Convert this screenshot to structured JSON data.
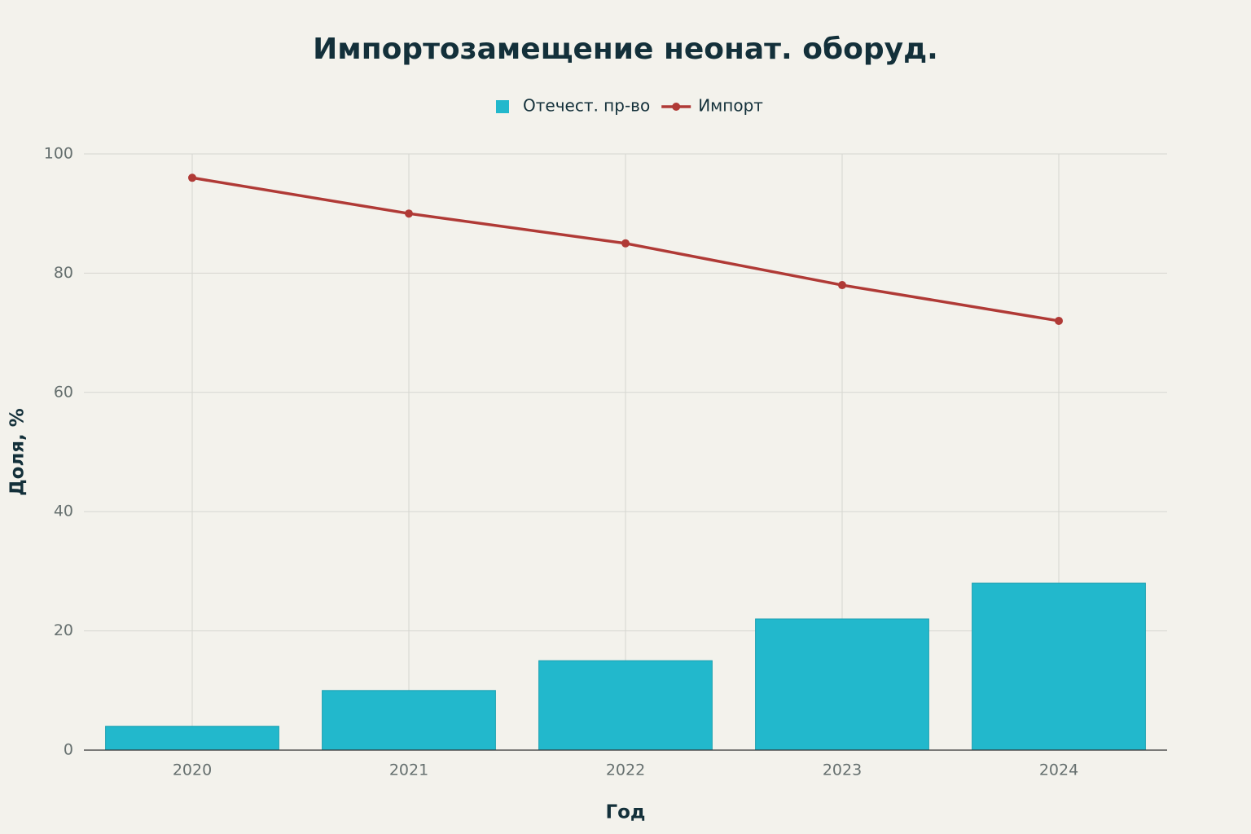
{
  "chart_data": {
    "type": "bar",
    "title": "Импортозамещение неонат. оборуд.",
    "x_label": "Год",
    "y_label": "Доля, %",
    "categories": [
      "2020",
      "2021",
      "2022",
      "2023",
      "2024"
    ],
    "series": [
      {
        "name": "Отечест. пр-во",
        "type": "bar",
        "color": "#22b8cc",
        "values": [
          4,
          10,
          15,
          22,
          28
        ]
      },
      {
        "name": "Импорт",
        "type": "line",
        "color": "#b03a36",
        "values": [
          96,
          90,
          85,
          78,
          72
        ]
      }
    ],
    "ylim": [
      0,
      100
    ],
    "yticks": [
      0,
      20,
      40,
      60,
      80,
      100
    ],
    "grid": true,
    "legend": "top"
  }
}
